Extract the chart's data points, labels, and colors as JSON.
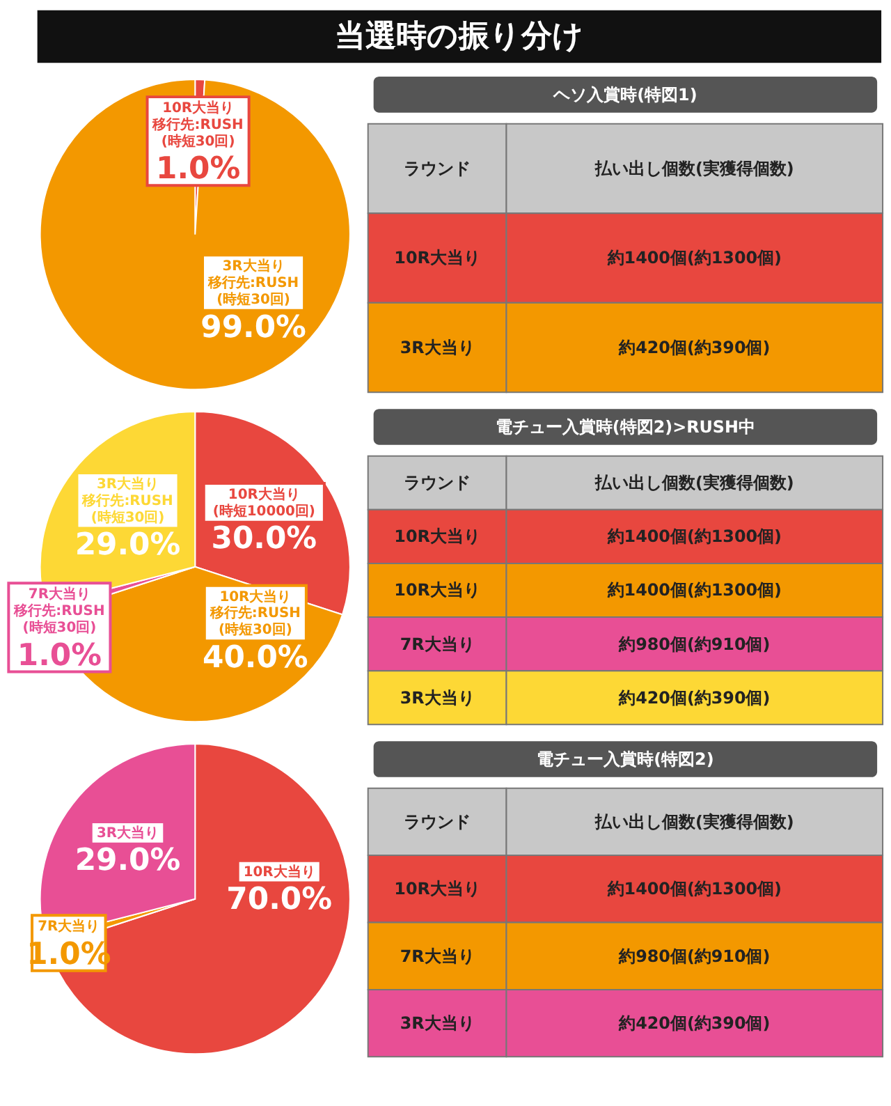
{
  "chart_data": [
    {
      "type": "other",
      "title": "当選時の振り分け"
    },
    {
      "type": "pie",
      "categories": [
        "10R大当り移行先:RUSH(時短30回)",
        "3R大当り移行先:RUSH(時短30回)"
      ],
      "values": [
        1.0,
        99.0
      ],
      "value_labels": [
        "1.0%",
        "99.0%"
      ],
      "colors": [
        "#e8473f",
        "#f39800"
      ]
    },
    {
      "type": "other",
      "title": "ヘソ入賞時(特図1)",
      "annotations": [
        "ラウンド",
        "払い出し個数(実獲得個数)",
        "10R大当り",
        "約1400個(約1300個)",
        "3R大当り",
        "約420個(約390個)"
      ],
      "colors": [
        "#c8c8c8",
        "#e8473f",
        "#f39800"
      ]
    },
    {
      "type": "pie",
      "categories": [
        "10R大当り(時短10000回)",
        "10R大当り移行先:RUSH(時短30回)",
        "7R大当り移行先:RUSH(時短30回)",
        "3R大当り移行先:RUSH(時短30回)"
      ],
      "values": [
        30.0,
        40.0,
        1.0,
        29.0
      ],
      "value_labels": [
        "30.0%",
        "40.0%",
        "1.0%",
        "29.0%"
      ],
      "colors": [
        "#e8473f",
        "#f39800",
        "#e84f95",
        "#fdd835"
      ]
    },
    {
      "type": "other",
      "title": "電チュー入賞時(特図2)>RUSH中",
      "annotations": [
        "ラウンド",
        "払い出し個数(実獲得個数)",
        "10R大当り",
        "約1400個(約1300個)",
        "10R大当り",
        "約1400個(約1300個)",
        "7R大当り",
        "約980個(約910個)",
        "3R大当り",
        "約420個(約390個)"
      ],
      "colors": [
        "#c8c8c8",
        "#e8473f",
        "#f39800",
        "#e84f95",
        "#fdd835"
      ]
    },
    {
      "type": "pie",
      "categories": [
        "10R大当り",
        "7R大当り",
        "3R大当り"
      ],
      "values": [
        70.0,
        1.0,
        29.0
      ],
      "value_labels": [
        "70.0%",
        "1.0%",
        "29.0%"
      ],
      "colors": [
        "#e8473f",
        "#f39800",
        "#e84f95"
      ]
    },
    {
      "type": "other",
      "title": "電チュー入賞時(特図2)",
      "annotations": [
        "ラウンド",
        "払い出し個数(実獲得個数)",
        "10R大当り",
        "約1400個(約1300個)",
        "7R大当り",
        "約980個(約910個)",
        "3R大当り",
        "約420個(約390個)"
      ],
      "colors": [
        "#c8c8c8",
        "#e8473f",
        "#f39800",
        "#e84f95"
      ]
    }
  ]
}
